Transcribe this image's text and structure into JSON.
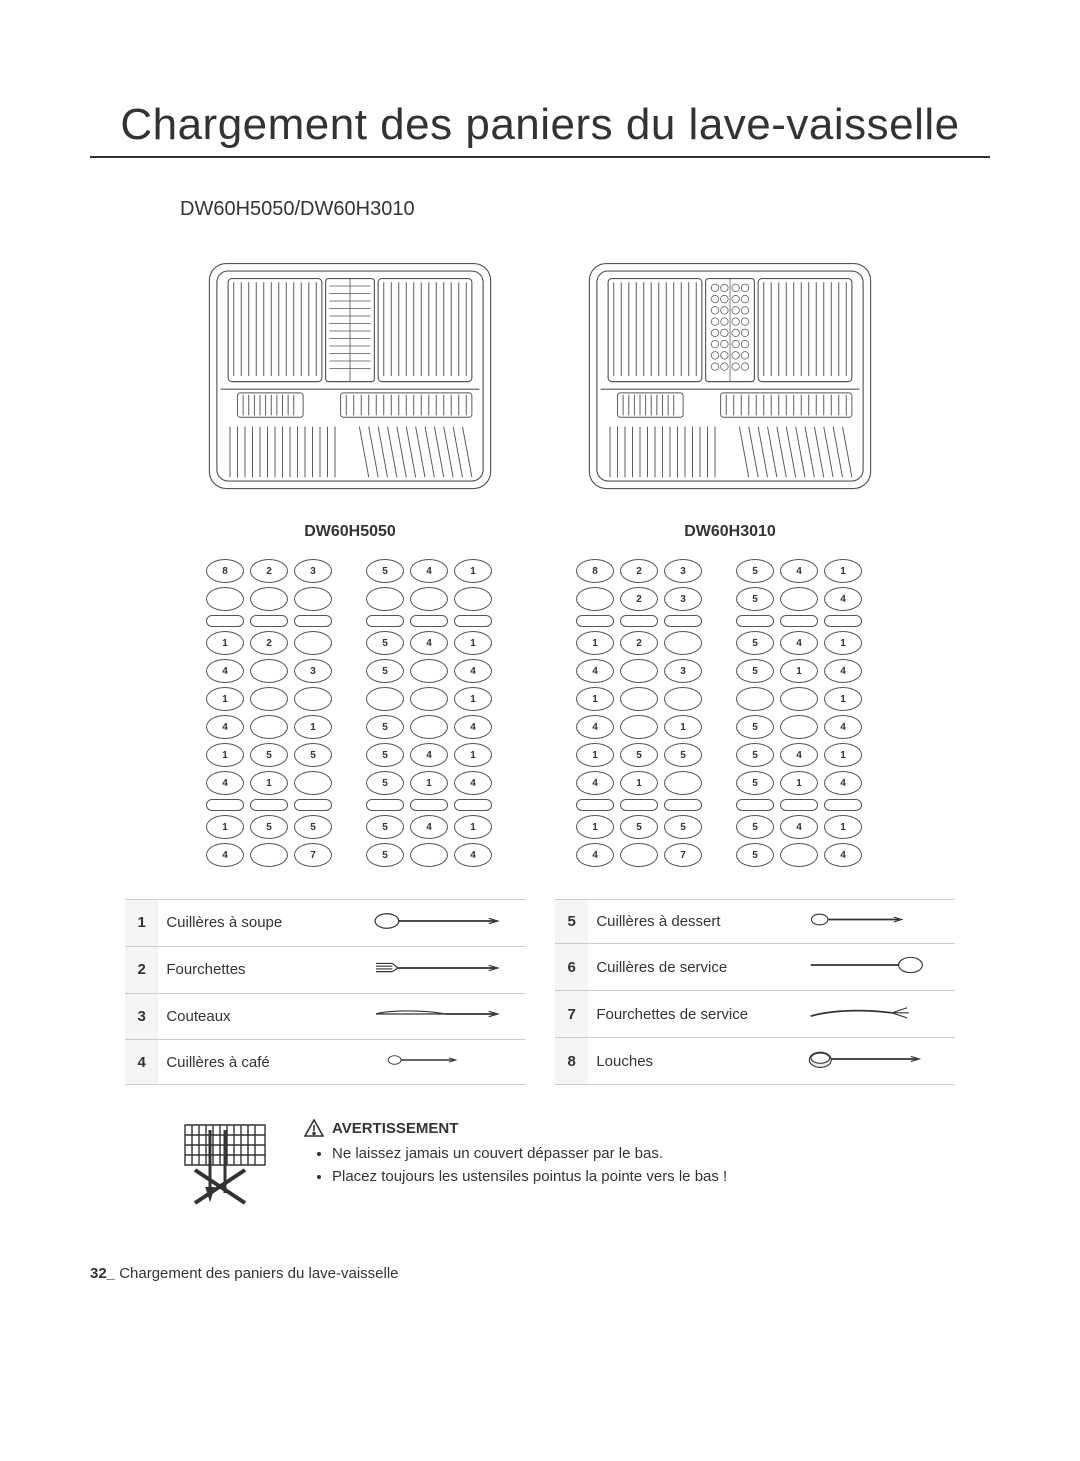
{
  "title": "Chargement des paniers du lave-vaisselle",
  "subtitle": "DW60H5050/DW60H3010",
  "rack_labels": {
    "left": "DW60H5050",
    "right": "DW60H3010"
  },
  "slot_diagrams": {
    "left": {
      "colA": [
        [
          "8",
          "2",
          "3"
        ],
        [
          "",
          " ",
          " "
        ],
        [
          "div"
        ],
        [
          "1",
          "2",
          " "
        ],
        [
          "4",
          " ",
          "3"
        ],
        [
          "1",
          " ",
          " "
        ],
        [
          "4",
          " ",
          "1"
        ],
        [
          "1",
          "5",
          "5"
        ],
        [
          "4",
          "1",
          " "
        ],
        [
          "div"
        ],
        [
          "1",
          "5",
          "5"
        ],
        [
          "4",
          " ",
          "7"
        ]
      ],
      "colB": [
        [
          "5",
          "4",
          "1"
        ],
        [
          "",
          " ",
          " "
        ],
        [
          "div"
        ],
        [
          "5",
          "4",
          "1"
        ],
        [
          "5",
          " ",
          "4"
        ],
        [
          "",
          " ",
          "1"
        ],
        [
          "5",
          " ",
          "4"
        ],
        [
          "5",
          "4",
          "1"
        ],
        [
          "5",
          "1",
          "4"
        ],
        [
          "div"
        ],
        [
          "5",
          "4",
          "1"
        ],
        [
          "5",
          " ",
          "4"
        ]
      ]
    },
    "right": {
      "colA": [
        [
          "8",
          "2",
          "3"
        ],
        [
          "",
          "2",
          "3"
        ],
        [
          "div"
        ],
        [
          "1",
          "2",
          " "
        ],
        [
          "4",
          " ",
          "3"
        ],
        [
          "1",
          " ",
          " "
        ],
        [
          "4",
          " ",
          "1"
        ],
        [
          "1",
          "5",
          "5"
        ],
        [
          "4",
          "1",
          " "
        ],
        [
          "div"
        ],
        [
          "1",
          "5",
          "5"
        ],
        [
          "4",
          " ",
          "7"
        ]
      ],
      "colB": [
        [
          "5",
          "4",
          "1"
        ],
        [
          "5",
          " ",
          "4"
        ],
        [
          "div"
        ],
        [
          "5",
          "4",
          "1"
        ],
        [
          "5",
          "1",
          "4"
        ],
        [
          "",
          " ",
          "1"
        ],
        [
          "5",
          " ",
          "4"
        ],
        [
          "5",
          "4",
          "1"
        ],
        [
          "5",
          "1",
          "4"
        ],
        [
          "div"
        ],
        [
          "5",
          "4",
          "1"
        ],
        [
          "5",
          " ",
          "4"
        ]
      ]
    }
  },
  "legend": {
    "left": [
      {
        "num": "1",
        "label": "Cuillères à soupe",
        "icon": "soupspoon"
      },
      {
        "num": "2",
        "label": "Fourchettes",
        "icon": "fork"
      },
      {
        "num": "3",
        "label": "Couteaux",
        "icon": "knife"
      },
      {
        "num": "4",
        "label": "Cuillères à café",
        "icon": "teaspoon"
      }
    ],
    "right": [
      {
        "num": "5",
        "label": "Cuillères à dessert",
        "icon": "dessertspoon"
      },
      {
        "num": "6",
        "label": "Cuillères de service",
        "icon": "servspoon"
      },
      {
        "num": "7",
        "label": "Fourchettes de service",
        "icon": "servfork"
      },
      {
        "num": "8",
        "label": "Louches",
        "icon": "ladle"
      }
    ]
  },
  "warning": {
    "heading": "AVERTISSEMENT",
    "bullets": [
      "Ne laissez jamais un couvert dépasser par le bas.",
      "Placez toujours les ustensiles pointus la pointe vers le bas !"
    ]
  },
  "footer": {
    "page": "32_",
    "text": "Chargement des paniers du lave-vaisselle"
  },
  "colors": {
    "stroke": "#555555",
    "text": "#333333",
    "divider": "#cccccc",
    "bg": "#ffffff"
  }
}
